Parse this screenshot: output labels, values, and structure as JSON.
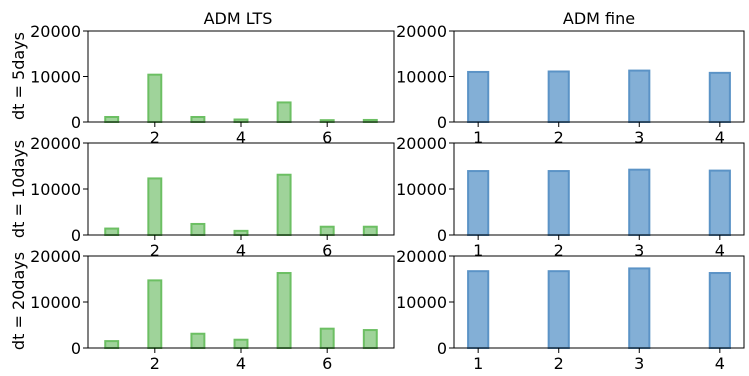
{
  "colors": {
    "lts_fill": "#9fd39a",
    "lts_edge": "#6cbf63",
    "fine_fill": "#83afd6",
    "fine_edge": "#5b93c6"
  },
  "chart_data": {
    "type": "bar",
    "layout": "3x2 grid",
    "column_titles": [
      "ADM LTS",
      "ADM fine"
    ],
    "row_labels": [
      "dt = 5days",
      "dt = 10days",
      "dt = 20days"
    ],
    "ylim": [
      0,
      20000
    ],
    "yticks": [
      0,
      10000,
      20000
    ],
    "panels": [
      {
        "id": "lts_5",
        "row": 0,
        "col": 0,
        "color": "green",
        "x": [
          1,
          2,
          3,
          4,
          5,
          6,
          7
        ],
        "values": [
          1100,
          10400,
          1100,
          550,
          4300,
          400,
          450
        ],
        "xticks": [
          2,
          4,
          6
        ],
        "xlim": [
          0.45,
          7.55
        ],
        "bar_width": 0.3
      },
      {
        "id": "fine_5",
        "row": 0,
        "col": 1,
        "color": "blue",
        "x": [
          1,
          2,
          3,
          4
        ],
        "values": [
          11000,
          11100,
          11300,
          10800
        ],
        "xticks": [
          1,
          2,
          3,
          4
        ],
        "xlim": [
          0.7,
          4.3
        ],
        "bar_width": 0.25
      },
      {
        "id": "lts_10",
        "row": 1,
        "col": 0,
        "color": "green",
        "x": [
          1,
          2,
          3,
          4,
          5,
          6,
          7
        ],
        "values": [
          1400,
          12300,
          2400,
          900,
          13100,
          1800,
          1800
        ],
        "xticks": [
          2,
          4,
          6
        ],
        "xlim": [
          0.45,
          7.55
        ],
        "bar_width": 0.3
      },
      {
        "id": "fine_10",
        "row": 1,
        "col": 1,
        "color": "blue",
        "x": [
          1,
          2,
          3,
          4
        ],
        "values": [
          13900,
          13900,
          14200,
          14000
        ],
        "xticks": [
          1,
          2,
          3,
          4
        ],
        "xlim": [
          0.7,
          4.3
        ],
        "bar_width": 0.25
      },
      {
        "id": "lts_20",
        "row": 2,
        "col": 0,
        "color": "green",
        "x": [
          1,
          2,
          3,
          4,
          5,
          6,
          7
        ],
        "values": [
          1500,
          14700,
          3100,
          1800,
          16300,
          4200,
          3900
        ],
        "xticks": [
          2,
          4,
          6
        ],
        "xlim": [
          0.45,
          7.55
        ],
        "bar_width": 0.3
      },
      {
        "id": "fine_20",
        "row": 2,
        "col": 1,
        "color": "blue",
        "x": [
          1,
          2,
          3,
          4
        ],
        "values": [
          16700,
          16700,
          17300,
          16300
        ],
        "xticks": [
          1,
          2,
          3,
          4
        ],
        "xlim": [
          0.7,
          4.3
        ],
        "bar_width": 0.25
      }
    ]
  }
}
